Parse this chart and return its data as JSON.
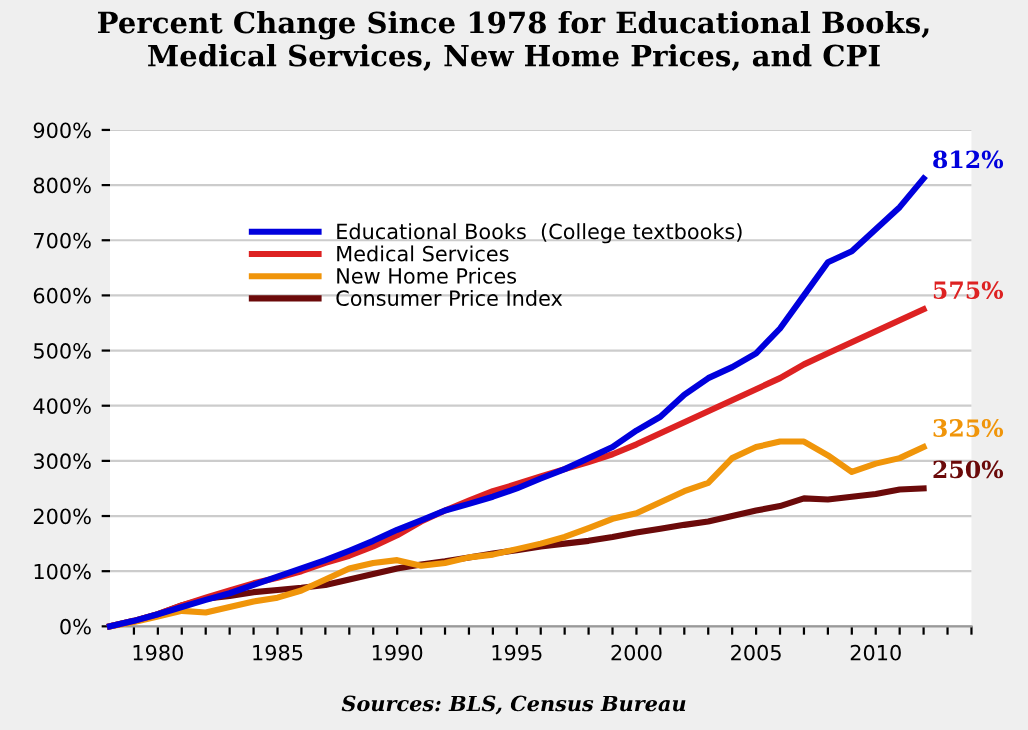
{
  "chart_data": {
    "type": "line",
    "title": "Percent Change Since 1978 for Educational Books,\nMedical Services, New Home Prices, and CPI",
    "annotations": [
      "Sources: BLS, Census Bureau"
    ],
    "x": [
      1978,
      1979,
      1980,
      1981,
      1982,
      1983,
      1984,
      1985,
      1986,
      1987,
      1988,
      1989,
      1990,
      1991,
      1992,
      1993,
      1994,
      1995,
      1996,
      1997,
      1998,
      1999,
      2000,
      2001,
      2002,
      2003,
      2004,
      2005,
      2006,
      2007,
      2008,
      2009,
      2010,
      2011,
      2012
    ],
    "series": [
      {
        "name": "Educational Books  (College textbooks)",
        "color": "#0000dd",
        "values": [
          0,
          10,
          22,
          35,
          48,
          60,
          75,
          90,
          105,
          120,
          137,
          155,
          175,
          192,
          210,
          222,
          235,
          250,
          268,
          285,
          305,
          325,
          355,
          380,
          420,
          450,
          470,
          495,
          540,
          600,
          660,
          680,
          720,
          760,
          812
        ],
        "value_labels": [
          null,
          null,
          null,
          null,
          null,
          null,
          null,
          null,
          null,
          null,
          null,
          null,
          null,
          null,
          null,
          null,
          null,
          null,
          null,
          null,
          null,
          null,
          null,
          null,
          null,
          null,
          null,
          null,
          null,
          null,
          null,
          null,
          null,
          null,
          "812%"
        ]
      },
      {
        "name": "Medical Services",
        "color": "#dd2222",
        "values": [
          0,
          10,
          22,
          38,
          52,
          65,
          78,
          88,
          100,
          115,
          128,
          145,
          165,
          190,
          210,
          228,
          245,
          258,
          272,
          285,
          298,
          312,
          330,
          350,
          370,
          390,
          410,
          430,
          450,
          475,
          495,
          515,
          535,
          555,
          575
        ],
        "value_labels": [
          null,
          null,
          null,
          null,
          null,
          null,
          null,
          null,
          null,
          null,
          null,
          null,
          null,
          null,
          null,
          null,
          null,
          null,
          null,
          null,
          null,
          null,
          null,
          null,
          null,
          null,
          null,
          null,
          null,
          null,
          null,
          null,
          null,
          null,
          "575%"
        ]
      },
      {
        "name": "New Home Prices",
        "color": "#f0950a",
        "values": [
          0,
          8,
          18,
          28,
          25,
          35,
          45,
          52,
          65,
          85,
          105,
          115,
          120,
          110,
          115,
          125,
          130,
          140,
          150,
          162,
          178,
          195,
          205,
          225,
          245,
          260,
          305,
          325,
          335,
          335,
          310,
          280,
          295,
          305,
          325
        ],
        "value_labels": [
          null,
          null,
          null,
          null,
          null,
          null,
          null,
          null,
          null,
          null,
          null,
          null,
          null,
          null,
          null,
          null,
          null,
          null,
          null,
          null,
          null,
          null,
          null,
          null,
          null,
          null,
          null,
          null,
          null,
          null,
          null,
          null,
          null,
          null,
          "325%"
        ]
      },
      {
        "name": "Consumer Price Index",
        "color": "#6b0a0a",
        "values": [
          0,
          10,
          22,
          38,
          50,
          55,
          62,
          66,
          70,
          75,
          85,
          95,
          105,
          112,
          118,
          125,
          132,
          138,
          145,
          150,
          155,
          162,
          170,
          177,
          184,
          190,
          200,
          210,
          218,
          232,
          230,
          235,
          240,
          248,
          250
        ],
        "value_labels": [
          null,
          null,
          null,
          null,
          null,
          null,
          null,
          null,
          null,
          null,
          null,
          null,
          null,
          null,
          null,
          null,
          null,
          null,
          null,
          null,
          null,
          null,
          null,
          null,
          null,
          null,
          null,
          null,
          null,
          null,
          null,
          null,
          null,
          null,
          "250%"
        ]
      }
    ],
    "xlim": [
      1978,
      2014
    ],
    "xticks": [
      {
        "value": 1979,
        "label": null
      },
      1980,
      {
        "value": 1981,
        "label": null
      },
      {
        "value": 1982,
        "label": null
      },
      {
        "value": 1983,
        "label": null
      },
      {
        "value": 1984,
        "label": null
      },
      1985,
      {
        "value": 1986,
        "label": null
      },
      {
        "value": 1987,
        "label": null
      },
      {
        "value": 1988,
        "label": null
      },
      {
        "value": 1989,
        "label": null
      },
      1990,
      {
        "value": 1991,
        "label": null
      },
      {
        "value": 1992,
        "label": null
      },
      {
        "value": 1993,
        "label": null
      },
      {
        "value": 1994,
        "label": null
      },
      1995,
      {
        "value": 1996,
        "label": null
      },
      {
        "value": 1997,
        "label": null
      },
      {
        "value": 1998,
        "label": null
      },
      {
        "value": 1999,
        "label": null
      },
      2000,
      {
        "value": 2001,
        "label": null
      },
      {
        "value": 2002,
        "label": null
      },
      {
        "value": 2003,
        "label": null
      },
      {
        "value": 2004,
        "label": null
      },
      2005,
      {
        "value": 2006,
        "label": null
      },
      {
        "value": 2007,
        "label": null
      },
      {
        "value": 2008,
        "label": null
      },
      {
        "value": 2009,
        "label": null
      },
      2010,
      {
        "value": 2011,
        "label": null
      },
      {
        "value": 2012,
        "label": null
      },
      {
        "value": 2013,
        "label": null
      },
      {
        "value": 2014,
        "label": null
      }
    ],
    "ylim": [
      0,
      900
    ],
    "yticks": [
      {
        "value": 0,
        "label": "0%"
      },
      {
        "value": 100,
        "label": "100%"
      },
      {
        "value": 200,
        "label": "200%"
      },
      {
        "value": 300,
        "label": "300%"
      },
      {
        "value": 400,
        "label": "400%"
      },
      {
        "value": 500,
        "label": "500%"
      },
      {
        "value": 600,
        "label": "600%"
      },
      {
        "value": 700,
        "label": "700%"
      },
      {
        "value": 800,
        "label": "800%"
      },
      {
        "value": 900,
        "label": "900%"
      }
    ],
    "grid": "y",
    "legend": "top",
    "line_style": "solid",
    "marker": "none"
  }
}
